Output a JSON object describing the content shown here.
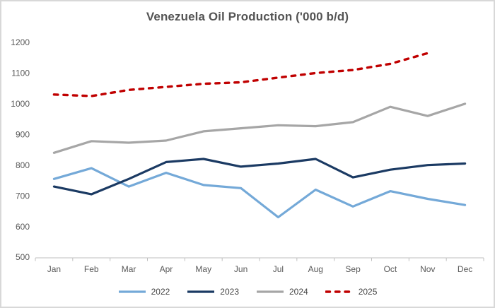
{
  "chart_data": {
    "type": "line",
    "title": "Venezuela Oil Production ('000 b/d)",
    "xlabel": "",
    "ylabel": "",
    "ylim": [
      500,
      1200
    ],
    "yticks": [
      500,
      600,
      700,
      800,
      900,
      1000,
      1100,
      1200
    ],
    "grid": false,
    "legend_position": "bottom",
    "categories": [
      "Jan",
      "Feb",
      "Mar",
      "Apr",
      "May",
      "Jun",
      "Jul",
      "Aug",
      "Sep",
      "Oct",
      "Nov",
      "Dec"
    ],
    "series": [
      {
        "name": "2022",
        "color": "#74A9D8",
        "style": "solid",
        "values": [
          755,
          790,
          730,
          775,
          735,
          725,
          630,
          720,
          665,
          715,
          690,
          670
        ]
      },
      {
        "name": "2023",
        "color": "#1B3A63",
        "style": "solid",
        "values": [
          730,
          705,
          755,
          810,
          820,
          795,
          805,
          820,
          760,
          785,
          800,
          805
        ]
      },
      {
        "name": "2024",
        "color": "#A6A6A6",
        "style": "solid",
        "values": [
          840,
          878,
          873,
          880,
          910,
          920,
          930,
          927,
          940,
          990,
          960,
          1000
        ]
      },
      {
        "name": "2025",
        "color": "#C00000",
        "style": "dashed",
        "values": [
          1030,
          1025,
          1045,
          1055,
          1065,
          1070,
          1085,
          1100,
          1110,
          1130,
          1165,
          null
        ]
      }
    ]
  },
  "colors": {
    "axis": "#BFBFBF",
    "tick_label": "#595959",
    "title": "#545454",
    "background": "#FFFFFF",
    "border": "#D8D8D8"
  }
}
